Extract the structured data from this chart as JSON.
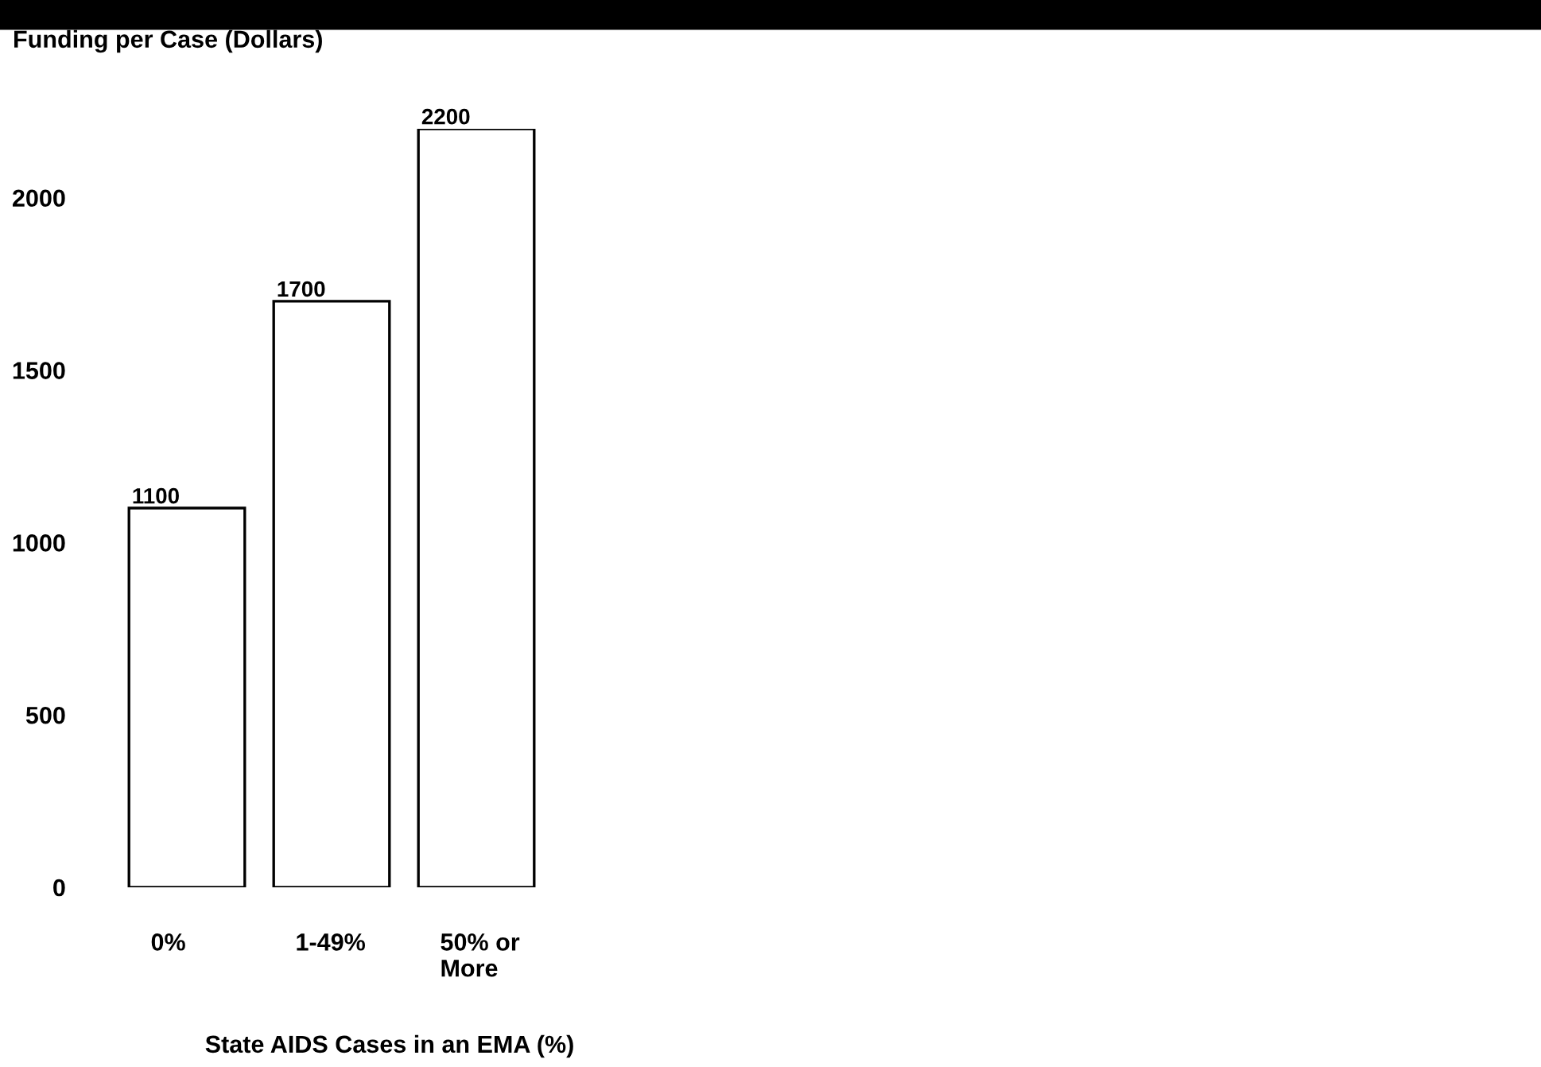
{
  "chart_data": {
    "type": "bar",
    "ylabel": "Funding per Case (Dollars)",
    "xlabel": "State AIDS Cases in an EMA (%)",
    "categories": [
      "0%",
      "1-49%",
      "50% or\nMore"
    ],
    "values": [
      1100,
      1700,
      2200
    ],
    "color": "#ffffff",
    "ylim": [
      0,
      2200
    ],
    "yticks": [
      0,
      500,
      1000,
      1500,
      2000
    ],
    "data_labels": true,
    "grid": false,
    "legend": false
  }
}
